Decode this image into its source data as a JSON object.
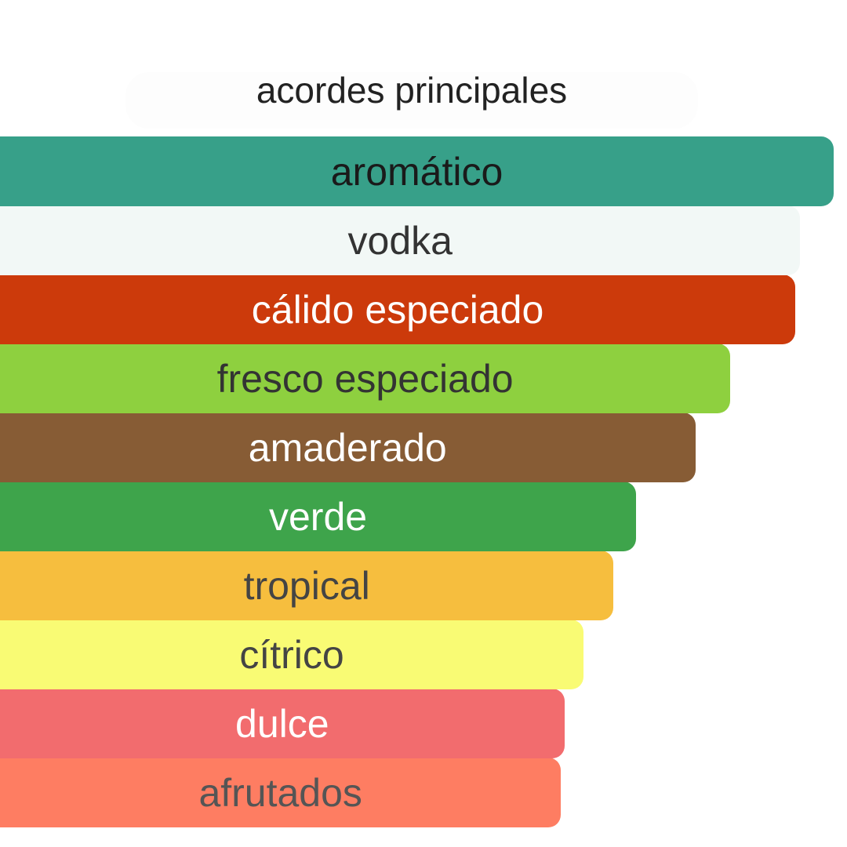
{
  "chart_data": {
    "type": "bar",
    "orientation": "horizontal",
    "title": "acordes principales",
    "categories": [
      "aromático",
      "vodka",
      "cálido especiado",
      "fresco especiado",
      "amaderado",
      "verde",
      "tropical",
      "cítrico",
      "dulce",
      "afrutados"
    ],
    "values": [
      100,
      96,
      95.4,
      87.6,
      83.4,
      76.3,
      73.6,
      70,
      67.7,
      67.3
    ],
    "colors": [
      "#37a089",
      "#f2f8f6",
      "#cc3a0b",
      "#8ed03f",
      "#875c35",
      "#3ea44b",
      "#f6be3e",
      "#f9fb74",
      "#f26c6e",
      "#fe7d62"
    ],
    "text_colors": [
      "#1a1a1a",
      "#333333",
      "#ffffff",
      "#333333",
      "#ffffff",
      "#ffffff",
      "#444444",
      "#444444",
      "#ffffff",
      "#555555"
    ],
    "grid": false,
    "legend": "none"
  }
}
